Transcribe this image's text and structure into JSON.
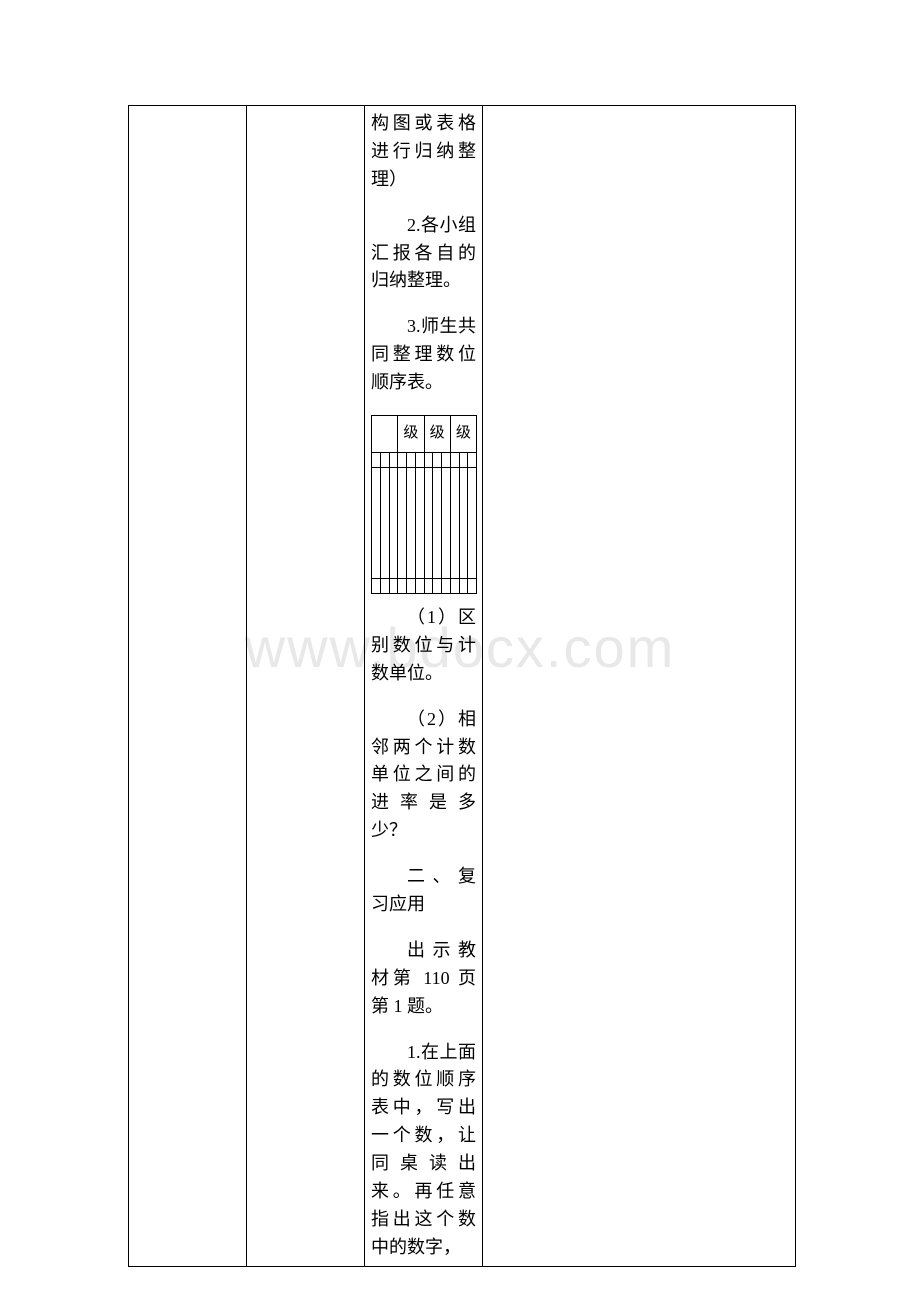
{
  "watermark": "www.bdocx.com",
  "content": {
    "p0": "构图或表格进行归纳整理）",
    "p1": "2.各小组汇报各自的归纳整理。",
    "p2": "3.师生共同整理数位顺序表。",
    "table": {
      "headers": [
        "",
        "级",
        "级",
        "级"
      ]
    },
    "p3": "（1）区别数位与计数单位。",
    "p4": "（2）相邻两个计数单位之间的进率是多少？",
    "p5": "二、复习应用",
    "p6": "出示教材第 110 页第 1 题。",
    "p7": "1.在上面的数位顺序表中，写出一个数，让同桌读出来。再任意指出这个数中的数字，"
  }
}
